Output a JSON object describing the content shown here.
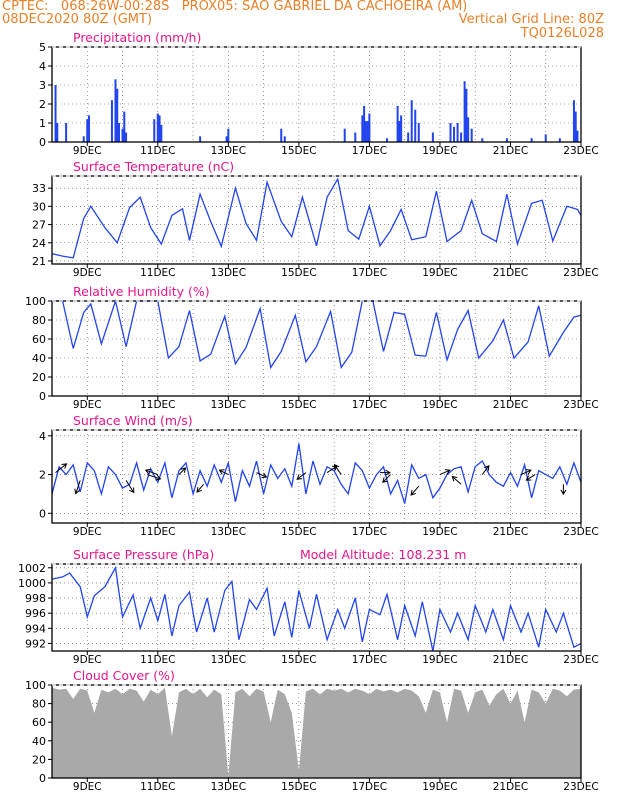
{
  "header": {
    "line1_left": "CPTEC:   068:26W-00:28S   PROX05: SAO GABRIEL DA CACHOEIRA (AM)",
    "line2_left": "08DEC2020 80Z (GMT)",
    "line2_right": "Vertical Grid Line: 80Z",
    "line3_right": "TQ0126L028",
    "text_color": "#e8802a",
    "title_color": "#e6168c"
  },
  "x_axis": {
    "range_days": [
      8.0,
      23.0
    ],
    "ticks": [
      {
        "day": 9,
        "label": "9DEC"
      },
      {
        "day": 11,
        "label": "11DEC"
      },
      {
        "day": 13,
        "label": "13DEC"
      },
      {
        "day": 15,
        "label": "15DEC"
      },
      {
        "day": 17,
        "label": "17DEC"
      },
      {
        "day": 19,
        "label": "19DEC"
      },
      {
        "day": 21,
        "label": "21DEC"
      },
      {
        "day": 23,
        "label": "23DEC"
      }
    ]
  },
  "chart_data": [
    {
      "type": "bar",
      "title": "Precipitation (mm/h)",
      "ylim": [
        0,
        5
      ],
      "yticks": [
        0,
        1,
        2,
        3,
        4,
        5
      ],
      "grid": true,
      "color": "#2244ee",
      "x": [
        8.1,
        8.15,
        8.4,
        8.9,
        9.0,
        9.05,
        9.7,
        9.8,
        9.85,
        9.9,
        10.0,
        10.05,
        10.1,
        10.9,
        11.0,
        11.05,
        11.1,
        12.2,
        12.95,
        13.0,
        14.5,
        14.6,
        16.3,
        16.6,
        16.8,
        16.85,
        16.9,
        16.95,
        17.0,
        17.5,
        17.8,
        17.85,
        17.9,
        18.1,
        18.2,
        18.3,
        18.4,
        18.8,
        19.3,
        19.4,
        19.5,
        19.6,
        19.7,
        19.75,
        19.8,
        19.9,
        20.2,
        20.9,
        21.6,
        22.0,
        22.4,
        22.8,
        22.85,
        22.9
      ],
      "values": [
        3.0,
        1.0,
        1.0,
        0.3,
        1.2,
        1.4,
        2.2,
        3.3,
        2.8,
        1.0,
        0.7,
        1.6,
        0.5,
        1.2,
        1.5,
        1.4,
        0.9,
        0.3,
        0.3,
        0.7,
        0.7,
        0.3,
        0.7,
        0.5,
        1.4,
        1.9,
        1.1,
        1.1,
        1.5,
        0.2,
        1.9,
        1.1,
        1.4,
        0.5,
        2.2,
        1.7,
        1.0,
        0.5,
        1.0,
        0.8,
        1.0,
        0.5,
        3.2,
        2.8,
        1.3,
        0.7,
        0.2,
        0.2,
        0.2,
        0.4,
        0.2,
        2.2,
        1.6,
        0.6
      ]
    },
    {
      "type": "line",
      "title": "Surface Temperature (nC)",
      "ylim": [
        20.5,
        35
      ],
      "yticks": [
        21,
        24,
        27,
        30,
        33
      ],
      "grid": true,
      "color": "#2244ee",
      "x": [
        8.0,
        8.3,
        8.6,
        8.9,
        9.1,
        9.5,
        9.85,
        10.2,
        10.5,
        10.8,
        11.1,
        11.4,
        11.7,
        11.9,
        12.2,
        12.5,
        12.8,
        13.2,
        13.5,
        13.8,
        14.1,
        14.5,
        14.8,
        15.1,
        15.5,
        15.8,
        16.1,
        16.4,
        16.7,
        17.0,
        17.3,
        17.6,
        17.9,
        18.2,
        18.6,
        18.9,
        19.2,
        19.6,
        19.9,
        20.2,
        20.6,
        20.9,
        21.2,
        21.6,
        21.9,
        22.2,
        22.6,
        22.9,
        23.0
      ],
      "values": [
        22.2,
        21.8,
        21.5,
        28.0,
        30.0,
        26.5,
        24.0,
        29.8,
        31.5,
        26.5,
        23.8,
        28.5,
        29.6,
        24.4,
        32.0,
        27.5,
        23.4,
        33.0,
        27.2,
        24.4,
        34.0,
        27.5,
        25.0,
        31.5,
        23.5,
        31.5,
        34.5,
        26.0,
        24.6,
        30.0,
        23.5,
        26.0,
        29.5,
        24.5,
        25.0,
        32.5,
        24.2,
        26.0,
        31.0,
        25.5,
        24.2,
        32.0,
        23.8,
        30.5,
        31.0,
        24.3,
        30.0,
        29.5,
        28.5
      ]
    },
    {
      "type": "line",
      "title": "Relative Humidity (%)",
      "ylim": [
        0,
        100
      ],
      "yticks": [
        0,
        20,
        40,
        60,
        80,
        100
      ],
      "grid": true,
      "color": "#2244ee",
      "x": [
        8.0,
        8.3,
        8.6,
        8.9,
        9.1,
        9.4,
        9.8,
        10.1,
        10.4,
        10.7,
        11.0,
        11.3,
        11.6,
        11.9,
        12.2,
        12.5,
        12.9,
        13.2,
        13.5,
        13.9,
        14.2,
        14.5,
        14.9,
        15.2,
        15.5,
        15.9,
        16.2,
        16.5,
        16.8,
        17.1,
        17.4,
        17.7,
        18.0,
        18.3,
        18.6,
        18.9,
        19.2,
        19.5,
        19.8,
        20.1,
        20.5,
        20.8,
        21.1,
        21.5,
        21.8,
        22.1,
        22.5,
        22.8,
        23.0
      ],
      "values": [
        100,
        100,
        50,
        88,
        97,
        55,
        100,
        52,
        100,
        100,
        100,
        40,
        52,
        90,
        37,
        44,
        84,
        34,
        51,
        92,
        30,
        47,
        85,
        36,
        52,
        89,
        30,
        46,
        100,
        100,
        47,
        88,
        86,
        43,
        42,
        88,
        38,
        70,
        90,
        40,
        58,
        80,
        40,
        57,
        95,
        42,
        67,
        83,
        85
      ]
    },
    {
      "type": "line",
      "title": "Surface Wind (m/s)",
      "ylim": [
        -0.5,
        4.3
      ],
      "yticks": [
        0,
        2,
        4
      ],
      "grid": true,
      "color": "#2244ee",
      "x": [
        8.0,
        8.2,
        8.4,
        8.6,
        8.8,
        9.0,
        9.2,
        9.4,
        9.6,
        9.8,
        10.0,
        10.2,
        10.4,
        10.6,
        10.8,
        11.0,
        11.2,
        11.4,
        11.6,
        11.8,
        12.0,
        12.2,
        12.4,
        12.6,
        12.8,
        13.0,
        13.2,
        13.4,
        13.6,
        13.8,
        14.0,
        14.2,
        14.4,
        14.6,
        14.8,
        15.0,
        15.2,
        15.4,
        15.6,
        15.8,
        16.0,
        16.2,
        16.4,
        16.6,
        16.8,
        17.0,
        17.2,
        17.4,
        17.6,
        17.8,
        18.0,
        18.2,
        18.4,
        18.6,
        18.8,
        19.0,
        19.2,
        19.4,
        19.6,
        19.8,
        20.0,
        20.2,
        20.4,
        20.6,
        20.8,
        21.0,
        21.2,
        21.4,
        21.6,
        21.8,
        22.0,
        22.2,
        22.4,
        22.6,
        22.8,
        23.0
      ],
      "values": [
        1.0,
        2.4,
        2.0,
        2.5,
        1.1,
        2.6,
        2.2,
        1.0,
        2.4,
        2.0,
        1.3,
        1.5,
        2.6,
        1.2,
        2.3,
        1.6,
        2.6,
        0.8,
        2.2,
        2.6,
        1.0,
        2.2,
        1.4,
        2.5,
        1.6,
        2.6,
        0.6,
        2.2,
        1.4,
        2.7,
        1.0,
        2.5,
        1.8,
        2.3,
        1.4,
        3.6,
        1.0,
        2.7,
        1.5,
        2.4,
        2.2,
        1.5,
        1.0,
        2.6,
        2.2,
        1.3,
        2.0,
        2.4,
        1.0,
        1.7,
        0.5,
        2.5,
        1.8,
        2.0,
        0.8,
        1.3,
        2.0,
        2.3,
        2.4,
        1.1,
        2.4,
        2.7,
        2.0,
        1.6,
        1.4,
        2.1,
        1.4,
        2.5,
        0.8,
        2.2,
        2.0,
        1.8,
        2.4,
        1.5,
        2.6,
        1.6
      ],
      "vectors": [
        {
          "x": 8.1,
          "y": 2.1,
          "u": 0.5,
          "v": 0.4
        },
        {
          "x": 8.8,
          "y": 1.7,
          "u": -0.2,
          "v": -0.6
        },
        {
          "x": 10.1,
          "y": 1.7,
          "u": 0.35,
          "v": -0.55
        },
        {
          "x": 10.7,
          "y": 2.0,
          "u": 0.6,
          "v": -0.2
        },
        {
          "x": 11.0,
          "y": 2.0,
          "u": -0.55,
          "v": 0.2
        },
        {
          "x": 11.6,
          "y": 2.0,
          "u": 0.3,
          "v": 0.3
        },
        {
          "x": 12.3,
          "y": 1.5,
          "u": -0.3,
          "v": -0.35
        },
        {
          "x": 13.0,
          "y": 2.0,
          "u": -0.4,
          "v": 0.2
        },
        {
          "x": 13.8,
          "y": 2.1,
          "u": 0.45,
          "v": -0.2
        },
        {
          "x": 15.2,
          "y": 2.1,
          "u": -0.4,
          "v": -0.3
        },
        {
          "x": 15.8,
          "y": 2.1,
          "u": 0.45,
          "v": 0.3
        },
        {
          "x": 16.2,
          "y": 2.0,
          "u": -0.3,
          "v": 0.45
        },
        {
          "x": 17.3,
          "y": 2.1,
          "u": 0.45,
          "v": 0.0
        },
        {
          "x": 17.6,
          "y": 2.0,
          "u": -0.35,
          "v": -0.35
        },
        {
          "x": 18.4,
          "y": 1.4,
          "u": -0.35,
          "v": -0.4
        },
        {
          "x": 19.0,
          "y": 2.0,
          "u": 0.45,
          "v": 0.2
        },
        {
          "x": 19.6,
          "y": 1.5,
          "u": -0.4,
          "v": 0.35
        },
        {
          "x": 20.2,
          "y": 2.0,
          "u": 0.3,
          "v": 0.4
        },
        {
          "x": 21.3,
          "y": 2.0,
          "u": 0.45,
          "v": 0.2
        },
        {
          "x": 21.7,
          "y": 2.0,
          "u": -0.4,
          "v": -0.25
        },
        {
          "x": 22.5,
          "y": 1.5,
          "u": 0.0,
          "v": -0.45
        }
      ]
    },
    {
      "type": "line",
      "title": "Surface Pressure (hPa)",
      "annotation": "Model Altitude: 108.231 m",
      "ylim": [
        991,
        1002.5
      ],
      "yticks": [
        992,
        994,
        996,
        998,
        1000,
        1002
      ],
      "grid": true,
      "color": "#2244ee",
      "x": [
        8.0,
        8.3,
        8.5,
        8.8,
        9.0,
        9.2,
        9.5,
        9.8,
        10.0,
        10.3,
        10.5,
        10.8,
        11.0,
        11.2,
        11.4,
        11.6,
        11.9,
        12.1,
        12.4,
        12.6,
        12.9,
        13.1,
        13.3,
        13.6,
        13.8,
        14.1,
        14.3,
        14.6,
        14.8,
        15.0,
        15.3,
        15.5,
        15.8,
        16.1,
        16.3,
        16.6,
        16.8,
        17.0,
        17.3,
        17.5,
        17.8,
        18.0,
        18.3,
        18.5,
        18.8,
        19.0,
        19.3,
        19.5,
        19.8,
        20.0,
        20.3,
        20.5,
        20.8,
        21.0,
        21.3,
        21.5,
        21.8,
        22.0,
        22.3,
        22.5,
        22.8,
        23.0
      ],
      "values": [
        1000.5,
        1000.8,
        1001.3,
        999.5,
        995.5,
        998.3,
        999.5,
        1002.0,
        995.5,
        998.4,
        994.0,
        998.0,
        995.0,
        998.5,
        993.0,
        997.0,
        998.8,
        993.5,
        998.0,
        993.5,
        999.0,
        1000.2,
        992.5,
        997.8,
        996.5,
        999.3,
        993.0,
        997.5,
        992.8,
        999.0,
        994.0,
        998.5,
        992.5,
        996.5,
        994.0,
        998.0,
        992.2,
        996.5,
        995.8,
        998.5,
        992.5,
        997.0,
        993.0,
        997.5,
        991.0,
        996.5,
        993.5,
        996.0,
        992.5,
        997.0,
        993.5,
        996.5,
        992.5,
        997.0,
        993.5,
        996.0,
        991.5,
        996.5,
        993.5,
        996.0,
        991.5,
        992.0
      ]
    },
    {
      "type": "area",
      "title": "Cloud Cover (%)",
      "ylim": [
        0,
        100
      ],
      "yticks": [
        0,
        20,
        40,
        60,
        80,
        100
      ],
      "grid": true,
      "color": "#a9a9a9",
      "x": [
        8.0,
        8.2,
        8.4,
        8.6,
        8.8,
        9.0,
        9.2,
        9.4,
        9.6,
        9.8,
        10.0,
        10.2,
        10.4,
        10.6,
        10.8,
        11.0,
        11.2,
        11.4,
        11.6,
        11.8,
        12.0,
        12.2,
        12.4,
        12.6,
        12.8,
        13.0,
        13.2,
        13.4,
        13.6,
        13.8,
        14.0,
        14.2,
        14.4,
        14.6,
        14.8,
        15.0,
        15.2,
        15.4,
        15.6,
        15.8,
        16.0,
        16.2,
        16.4,
        16.6,
        16.8,
        17.0,
        17.2,
        17.4,
        17.6,
        17.8,
        18.0,
        18.2,
        18.4,
        18.6,
        18.8,
        19.0,
        19.2,
        19.4,
        19.6,
        19.8,
        20.0,
        20.2,
        20.4,
        20.6,
        20.8,
        21.0,
        21.2,
        21.4,
        21.6,
        21.8,
        22.0,
        22.2,
        22.4,
        22.6,
        22.8,
        23.0
      ],
      "values": [
        97,
        95,
        96,
        85,
        96,
        94,
        70,
        95,
        92,
        96,
        90,
        96,
        94,
        82,
        95,
        90,
        97,
        45,
        92,
        96,
        90,
        96,
        87,
        95,
        90,
        2,
        92,
        96,
        88,
        96,
        93,
        60,
        95,
        90,
        70,
        8,
        93,
        96,
        90,
        96,
        94,
        96,
        92,
        96,
        94,
        90,
        96,
        93,
        95,
        92,
        96,
        94,
        88,
        70,
        95,
        92,
        60,
        96,
        94,
        70,
        92,
        95,
        78,
        90,
        96,
        80,
        94,
        60,
        95,
        92,
        80,
        96,
        94,
        88,
        95,
        96
      ]
    }
  ]
}
